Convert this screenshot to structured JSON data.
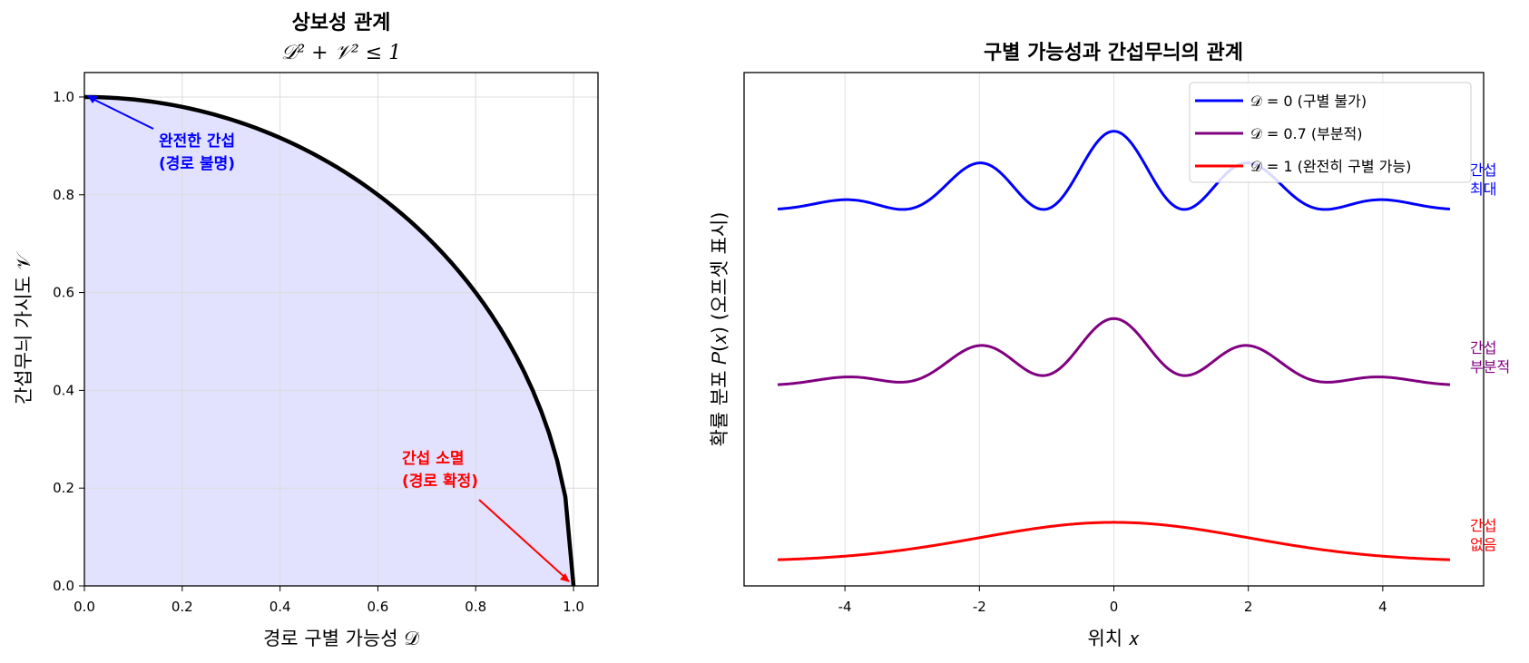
{
  "chart_data": [
    {
      "type": "area",
      "title": "상보성 관계",
      "subtitle": "𝒟² + 𝒱² ≤ 1",
      "xlabel": "경로 구별 가능성 𝒟",
      "ylabel": "간섭무늬 가시도 𝒱",
      "xlim": [
        0,
        1.05
      ],
      "ylim": [
        0,
        1.05
      ],
      "xticks": [
        "0.0",
        "0.2",
        "0.4",
        "0.6",
        "0.8",
        "1.0"
      ],
      "yticks": [
        "0.0",
        "0.2",
        "0.4",
        "0.6",
        "0.8",
        "1.0"
      ],
      "grid": true,
      "curve": "V = sqrt(1 - D^2), D from 0 to 1",
      "fill_color": "#e2e2ff",
      "line_color": "#000000",
      "annotations": [
        {
          "text": [
            "완전한 간섭",
            "(경로 불명)"
          ],
          "point": [
            0,
            1
          ],
          "text_pos": [
            0.15,
            0.87
          ],
          "color": "#0000ff"
        },
        {
          "text": [
            "간섭 소멸",
            "(경로 확정)"
          ],
          "point": [
            1,
            0
          ],
          "text_pos": [
            0.65,
            0.22
          ],
          "color": "#ff0000"
        }
      ]
    },
    {
      "type": "line",
      "title": "구별 가능성과 간섭무늬의 관계",
      "xlabel": "위치 𝑥",
      "ylabel": "확률 분포 𝑃(𝑥) (오프셋 표시)",
      "xlim": [
        -5.5,
        5.5
      ],
      "ylim": [
        -0.05,
        5.2
      ],
      "xticks": [
        "-4",
        "-2",
        "0",
        "2",
        "4"
      ],
      "grid": true,
      "legend_position": "top-right",
      "series": [
        {
          "name": "𝒟 = 0 (구별 불가)",
          "color": "#0000ff",
          "offset": 3.8,
          "visibility": 1.0,
          "side_label": [
            "간섭",
            "최대"
          ]
        },
        {
          "name": "𝒟 = 0.7 (부분적)",
          "color": "#800080",
          "offset": 2.0,
          "visibility": 0.71,
          "side_label": [
            "간섭",
            "부분적"
          ]
        },
        {
          "name": "𝒟 = 1 (완전히 구별 가능)",
          "color": "#ff0000",
          "offset": 0.2,
          "visibility": 0.0,
          "side_label": [
            "간섭",
            "없음"
          ]
        }
      ],
      "model": "P(x) = offset + 0.8 * exp(-x^2/8) * (1 + visibility * cos(3x)) / 2",
      "x_range": [
        -5,
        5
      ]
    }
  ]
}
